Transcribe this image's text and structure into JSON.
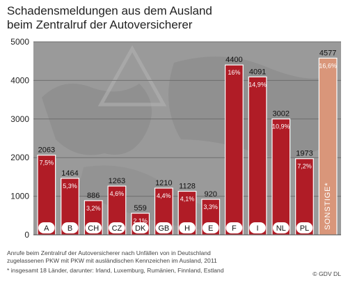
{
  "title_line1": "Schadensmeldungen aus dem Ausland",
  "title_line2": "beim Zentralruf der Autoversicherer",
  "footer_line1": "Anrufe beim Zentralruf der Autoversicherer nach Unfällen von in Deutschland",
  "footer_line2": "zugelassenen PKW mit PKW mit ausländischen Kennzeichen im Ausland, 2011",
  "footnote": "* insgesamt 18 Länder, darunter: Irland, Luxemburg, Rumänien, Finnland, Estland",
  "credit": "© GDV DL",
  "colors": {
    "bar": "#b01c26",
    "bar_highlight": "#d9967a",
    "plot_bg": "#9a9a9a",
    "grid": "#6e6e6e",
    "label_pill": "#ffffff"
  },
  "chart_data": {
    "type": "bar",
    "title": "Schadensmeldungen aus dem Ausland beim Zentralruf der Autoversicherer",
    "categories": [
      "A",
      "B",
      "CH",
      "CZ",
      "DK",
      "GB",
      "H",
      "E",
      "F",
      "I",
      "NL",
      "PL",
      "SONSTIGE*"
    ],
    "values": [
      2063,
      1464,
      886,
      1263,
      559,
      1210,
      1128,
      920,
      4400,
      4091,
      3002,
      1973,
      4577
    ],
    "value_labels": [
      "2063",
      "1464",
      "886",
      "1263",
      "559",
      "1210",
      "1128",
      "920",
      "4400",
      "4091",
      "3002",
      "1973",
      "4577"
    ],
    "percent_labels": [
      "7,5%",
      "5,3%",
      "3,2%",
      "4,6%",
      "2,1%",
      "4,4%",
      "4,1%",
      "3,3%",
      "16%",
      "14,9%",
      "10,9%",
      "7,2%",
      "16,6%"
    ],
    "highlight_category": "SONSTIGE*",
    "ylim": [
      0,
      5000
    ],
    "yticks": [
      "0",
      "1000",
      "2000",
      "3000",
      "4000",
      "5000"
    ],
    "grid": true
  }
}
